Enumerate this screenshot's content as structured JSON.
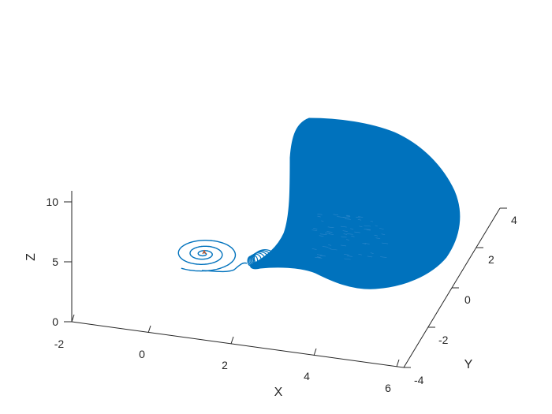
{
  "chart_data": {
    "type": "line3d",
    "title": "",
    "xlabel": "X",
    "ylabel": "Y",
    "zlabel": "Z",
    "xlim": [
      -2,
      6
    ],
    "ylim": [
      -4,
      4
    ],
    "zlim": [
      0,
      10
    ],
    "x_ticks": [
      "-2",
      "0",
      "2",
      "4",
      "6"
    ],
    "y_ticks": [
      "-4",
      "-2",
      "0",
      "2",
      "4"
    ],
    "z_ticks": [
      "0",
      "5",
      "10"
    ],
    "grid": false,
    "legend": "none",
    "series": [
      {
        "color": "#0072BD",
        "description": "3D trajectory: spiral that winds outward from near the start point, then transitions into a dense attractor filling a large bulb region",
        "spiral_center": [
          0.2,
          0.0,
          5.5
        ],
        "attractor_range": {
          "x": [
            2.5,
            6
          ],
          "y": [
            -2,
            4
          ],
          "z": [
            3,
            9
          ]
        }
      },
      {
        "color": "#D95319",
        "description": "initial segment near spiral center"
      }
    ]
  }
}
